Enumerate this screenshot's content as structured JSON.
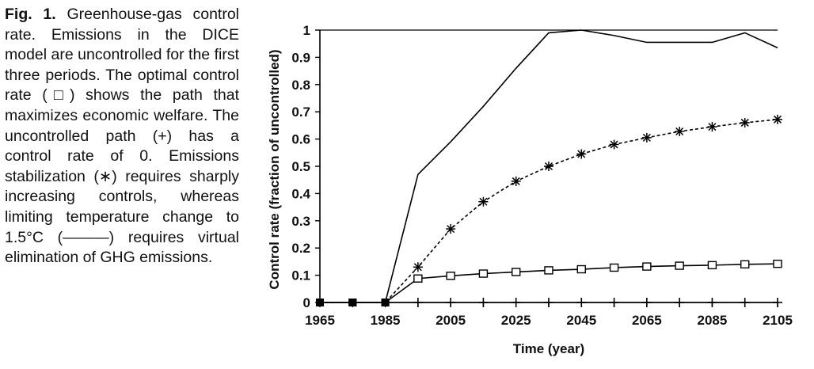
{
  "caption": {
    "label": "Fig. 1.",
    "text": "Greenhouse-gas control rate. Emissions in the DICE model are uncontrolled for the first three periods. The optimal control rate (□) shows the path that maximizes economic welfare. The uncontrolled path (+) has a control rate of 0. Emissions stabilization (∗) requires sharply increasing controls, whereas limiting temperature change to 1.5°C (———) requires virtual elimination of GHG emissions."
  },
  "chart_data": {
    "type": "line",
    "title": "",
    "xlabel": "Time (year)",
    "ylabel": "Control rate (fraction of uncontrolled)",
    "xlim": [
      1965,
      2105
    ],
    "ylim": [
      0,
      1
    ],
    "x_ticks": [
      1965,
      1985,
      2005,
      2025,
      2045,
      2065,
      2085,
      2105
    ],
    "y_ticks": [
      0,
      0.1,
      0.2,
      0.3,
      0.4,
      0.5,
      0.6,
      0.7,
      0.8,
      0.9,
      1
    ],
    "y_tick_labels": [
      "0",
      "0.1",
      "0.2",
      "0.3",
      "0.4",
      "0.5",
      "0.6",
      "0.7",
      "0.8",
      "0.9",
      "1"
    ],
    "grid": false,
    "legend": "none",
    "x": [
      1965,
      1975,
      1985,
      1995,
      2005,
      2015,
      2025,
      2035,
      2045,
      2055,
      2065,
      2075,
      2085,
      2095,
      2105
    ],
    "series": [
      {
        "key": "temperature",
        "marker": "none",
        "line": "solid",
        "values": [
          0,
          0,
          0,
          0.47,
          0.59,
          0.72,
          0.86,
          0.99,
          1.0,
          0.98,
          0.955,
          0.955,
          0.955,
          0.99,
          0.935
        ]
      },
      {
        "key": "stabilization",
        "marker": "asterisk",
        "line": "dashed",
        "values": [
          0,
          0,
          0,
          0.13,
          0.27,
          0.37,
          0.445,
          0.5,
          0.545,
          0.58,
          0.605,
          0.628,
          0.645,
          0.66,
          0.672
        ]
      },
      {
        "key": "optimal",
        "marker": "square",
        "line": "solid",
        "values": [
          0,
          0,
          0,
          0.088,
          0.098,
          0.106,
          0.112,
          0.118,
          0.122,
          0.128,
          0.132,
          0.135,
          0.137,
          0.14,
          0.142
        ]
      },
      {
        "key": "uncontrolled",
        "marker": "plus",
        "line": "solid",
        "values": [
          0,
          0,
          0,
          0,
          0,
          0,
          0,
          0,
          0,
          0,
          0,
          0,
          0,
          0,
          0
        ]
      }
    ]
  }
}
